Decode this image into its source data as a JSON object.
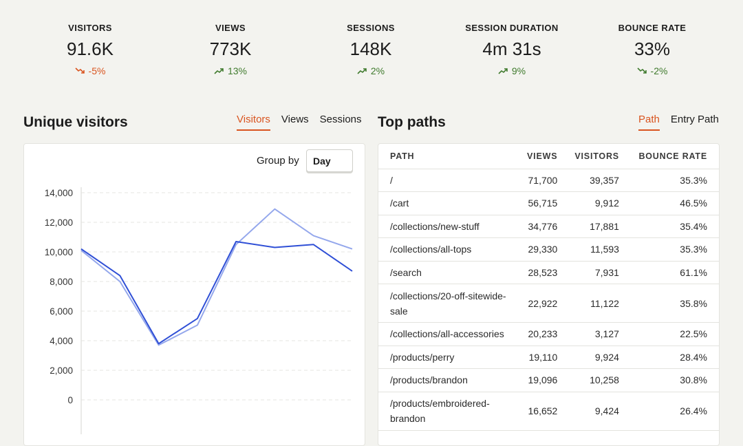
{
  "stats": [
    {
      "label": "VISITORS",
      "value": "91.6K",
      "delta": "-5%",
      "direction": "down",
      "color": "#d9541f"
    },
    {
      "label": "VIEWS",
      "value": "773K",
      "delta": "13%",
      "direction": "up",
      "color": "#3f7a2d"
    },
    {
      "label": "SESSIONS",
      "value": "148K",
      "delta": "2%",
      "direction": "up",
      "color": "#3f7a2d"
    },
    {
      "label": "SESSION DURATION",
      "value": "4m 31s",
      "delta": "9%",
      "direction": "up",
      "color": "#3f7a2d"
    },
    {
      "label": "BOUNCE RATE",
      "value": "33%",
      "delta": "-2%",
      "direction": "down",
      "color": "#3f7a2d"
    }
  ],
  "visitors_section": {
    "title": "Unique visitors",
    "tabs": [
      {
        "label": "Visitors",
        "active": true
      },
      {
        "label": "Views",
        "active": false
      },
      {
        "label": "Sessions",
        "active": false
      }
    ],
    "group_by_label": "Group by",
    "group_by_value": "Day"
  },
  "paths_section": {
    "title": "Top paths",
    "tabs": [
      {
        "label": "Path",
        "active": true
      },
      {
        "label": "Entry Path",
        "active": false
      }
    ],
    "columns": [
      "PATH",
      "VIEWS",
      "VISITORS",
      "BOUNCE RATE"
    ],
    "rows": [
      {
        "path": "/",
        "views": "71,700",
        "visitors": "39,357",
        "bounce": "35.3%"
      },
      {
        "path": "/cart",
        "views": "56,715",
        "visitors": "9,912",
        "bounce": "46.5%"
      },
      {
        "path": "/collections/new-stuff",
        "views": "34,776",
        "visitors": "17,881",
        "bounce": "35.4%"
      },
      {
        "path": "/collections/all-tops",
        "views": "29,330",
        "visitors": "11,593",
        "bounce": "35.3%"
      },
      {
        "path": "/search",
        "views": "28,523",
        "visitors": "7,931",
        "bounce": "61.1%"
      },
      {
        "path": "/collections/20-off-sitewide-sale",
        "views": "22,922",
        "visitors": "11,122",
        "bounce": "35.8%"
      },
      {
        "path": "/collections/all-accessories",
        "views": "20,233",
        "visitors": "3,127",
        "bounce": "22.5%"
      },
      {
        "path": "/products/perry",
        "views": "19,110",
        "visitors": "9,924",
        "bounce": "28.4%"
      },
      {
        "path": "/products/brandon",
        "views": "19,096",
        "visitors": "10,258",
        "bounce": "30.8%"
      },
      {
        "path": "/products/embroidered-brandon",
        "views": "16,652",
        "visitors": "9,424",
        "bounce": "26.4%"
      }
    ]
  },
  "chart_data": {
    "type": "line",
    "ylim": [
      0,
      14000
    ],
    "yticks": [
      "0",
      "2,000",
      "4,000",
      "6,000",
      "8,000",
      "10,000",
      "12,000",
      "14,000"
    ],
    "grid": true,
    "series": [
      {
        "values": [
          10200,
          8400,
          3800,
          5500,
          10700,
          10300,
          10500,
          8700
        ],
        "color": "#2f4fd6"
      },
      {
        "values": [
          10100,
          8000,
          3700,
          5050,
          10500,
          12900,
          11100,
          10200
        ],
        "color": "#94a7ec"
      }
    ]
  }
}
